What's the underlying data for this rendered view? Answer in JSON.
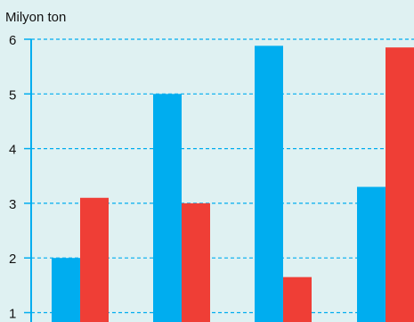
{
  "chart_data": {
    "type": "bar",
    "title": "",
    "ylabel": "Milyon ton",
    "xlabel": "",
    "categories": [
      "",
      "",
      "",
      ""
    ],
    "series": [
      {
        "color": "#00adef",
        "values": [
          2.0,
          5.0,
          5.88,
          3.3
        ]
      },
      {
        "color": "#ef3e36",
        "values": [
          3.1,
          3.0,
          1.65,
          5.85
        ]
      }
    ],
    "ylim": [
      1,
      6
    ],
    "yticks": [
      "1",
      "2",
      "3",
      "4",
      "5",
      "6"
    ],
    "grid": true,
    "colors": {
      "background": "#dff1f2",
      "grid": "#00adef",
      "axis": "#00adef",
      "text": "#111111"
    }
  }
}
